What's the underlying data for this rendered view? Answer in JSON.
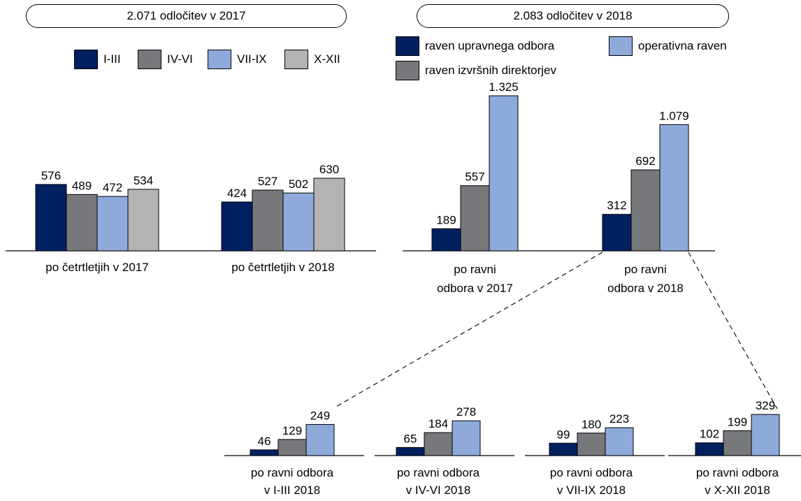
{
  "headers": {
    "left": "2.071 odločitev v 2017",
    "right": "2.083 odločitev v 2018"
  },
  "legend_quarters": [
    {
      "label": "I-III",
      "color": "#002060"
    },
    {
      "label": "IV-VI",
      "color": "#77787b"
    },
    {
      "label": "VII-IX",
      "color": "#8eaadb"
    },
    {
      "label": "X-XII",
      "color": "#b3b3b3"
    }
  ],
  "legend_levels": [
    {
      "label": "raven upravnega odbora",
      "color": "#002060"
    },
    {
      "label": "operativna raven",
      "color": "#8eaadb"
    },
    {
      "label": "raven izvršnih direktorjev",
      "color": "#77787b"
    }
  ],
  "chart_data": [
    {
      "type": "bar",
      "categories": [
        "po četrtletjih v 2017",
        "po četrtletjih v 2018"
      ],
      "series": [
        {
          "name": "I-III",
          "values": [
            576,
            424
          ],
          "labels": [
            "576",
            "424"
          ]
        },
        {
          "name": "IV-VI",
          "values": [
            489,
            527
          ],
          "labels": [
            "489",
            "527"
          ]
        },
        {
          "name": "VII-IX",
          "values": [
            472,
            502
          ],
          "labels": [
            "472",
            "502"
          ]
        },
        {
          "name": "X-XII",
          "values": [
            534,
            630
          ],
          "labels": [
            "534",
            "630"
          ]
        }
      ]
    },
    {
      "type": "bar",
      "categories": [
        "po ravni\nodbora v 2017",
        "po ravni\nodbora v 2018"
      ],
      "series": [
        {
          "name": "raven upravnega odbora",
          "values": [
            189,
            312
          ],
          "labels": [
            "189",
            "312"
          ]
        },
        {
          "name": "raven izvršnih direktorjev",
          "values": [
            557,
            692
          ],
          "labels": [
            "557",
            "692"
          ]
        },
        {
          "name": "operativna raven",
          "values": [
            1325,
            1079
          ],
          "labels": [
            "1.325",
            "1.079"
          ]
        }
      ]
    },
    {
      "type": "bar",
      "categories": [
        "po ravni odbora\nv I-III 2018",
        "po ravni odbora\nv IV-VI 2018",
        "po ravni odbora\nv VII-IX 2018",
        "po ravni odbora\nv X-XII 2018"
      ],
      "series": [
        {
          "name": "raven upravnega odbora",
          "values": [
            46,
            65,
            99,
            102
          ],
          "labels": [
            "46",
            "65",
            "99",
            "102"
          ]
        },
        {
          "name": "raven izvršnih direktorjev",
          "values": [
            129,
            184,
            180,
            199
          ],
          "labels": [
            "129",
            "184",
            "180",
            "199"
          ]
        },
        {
          "name": "operativna raven",
          "values": [
            249,
            278,
            223,
            329
          ],
          "labels": [
            "249",
            "278",
            "223",
            "329"
          ]
        }
      ]
    }
  ]
}
